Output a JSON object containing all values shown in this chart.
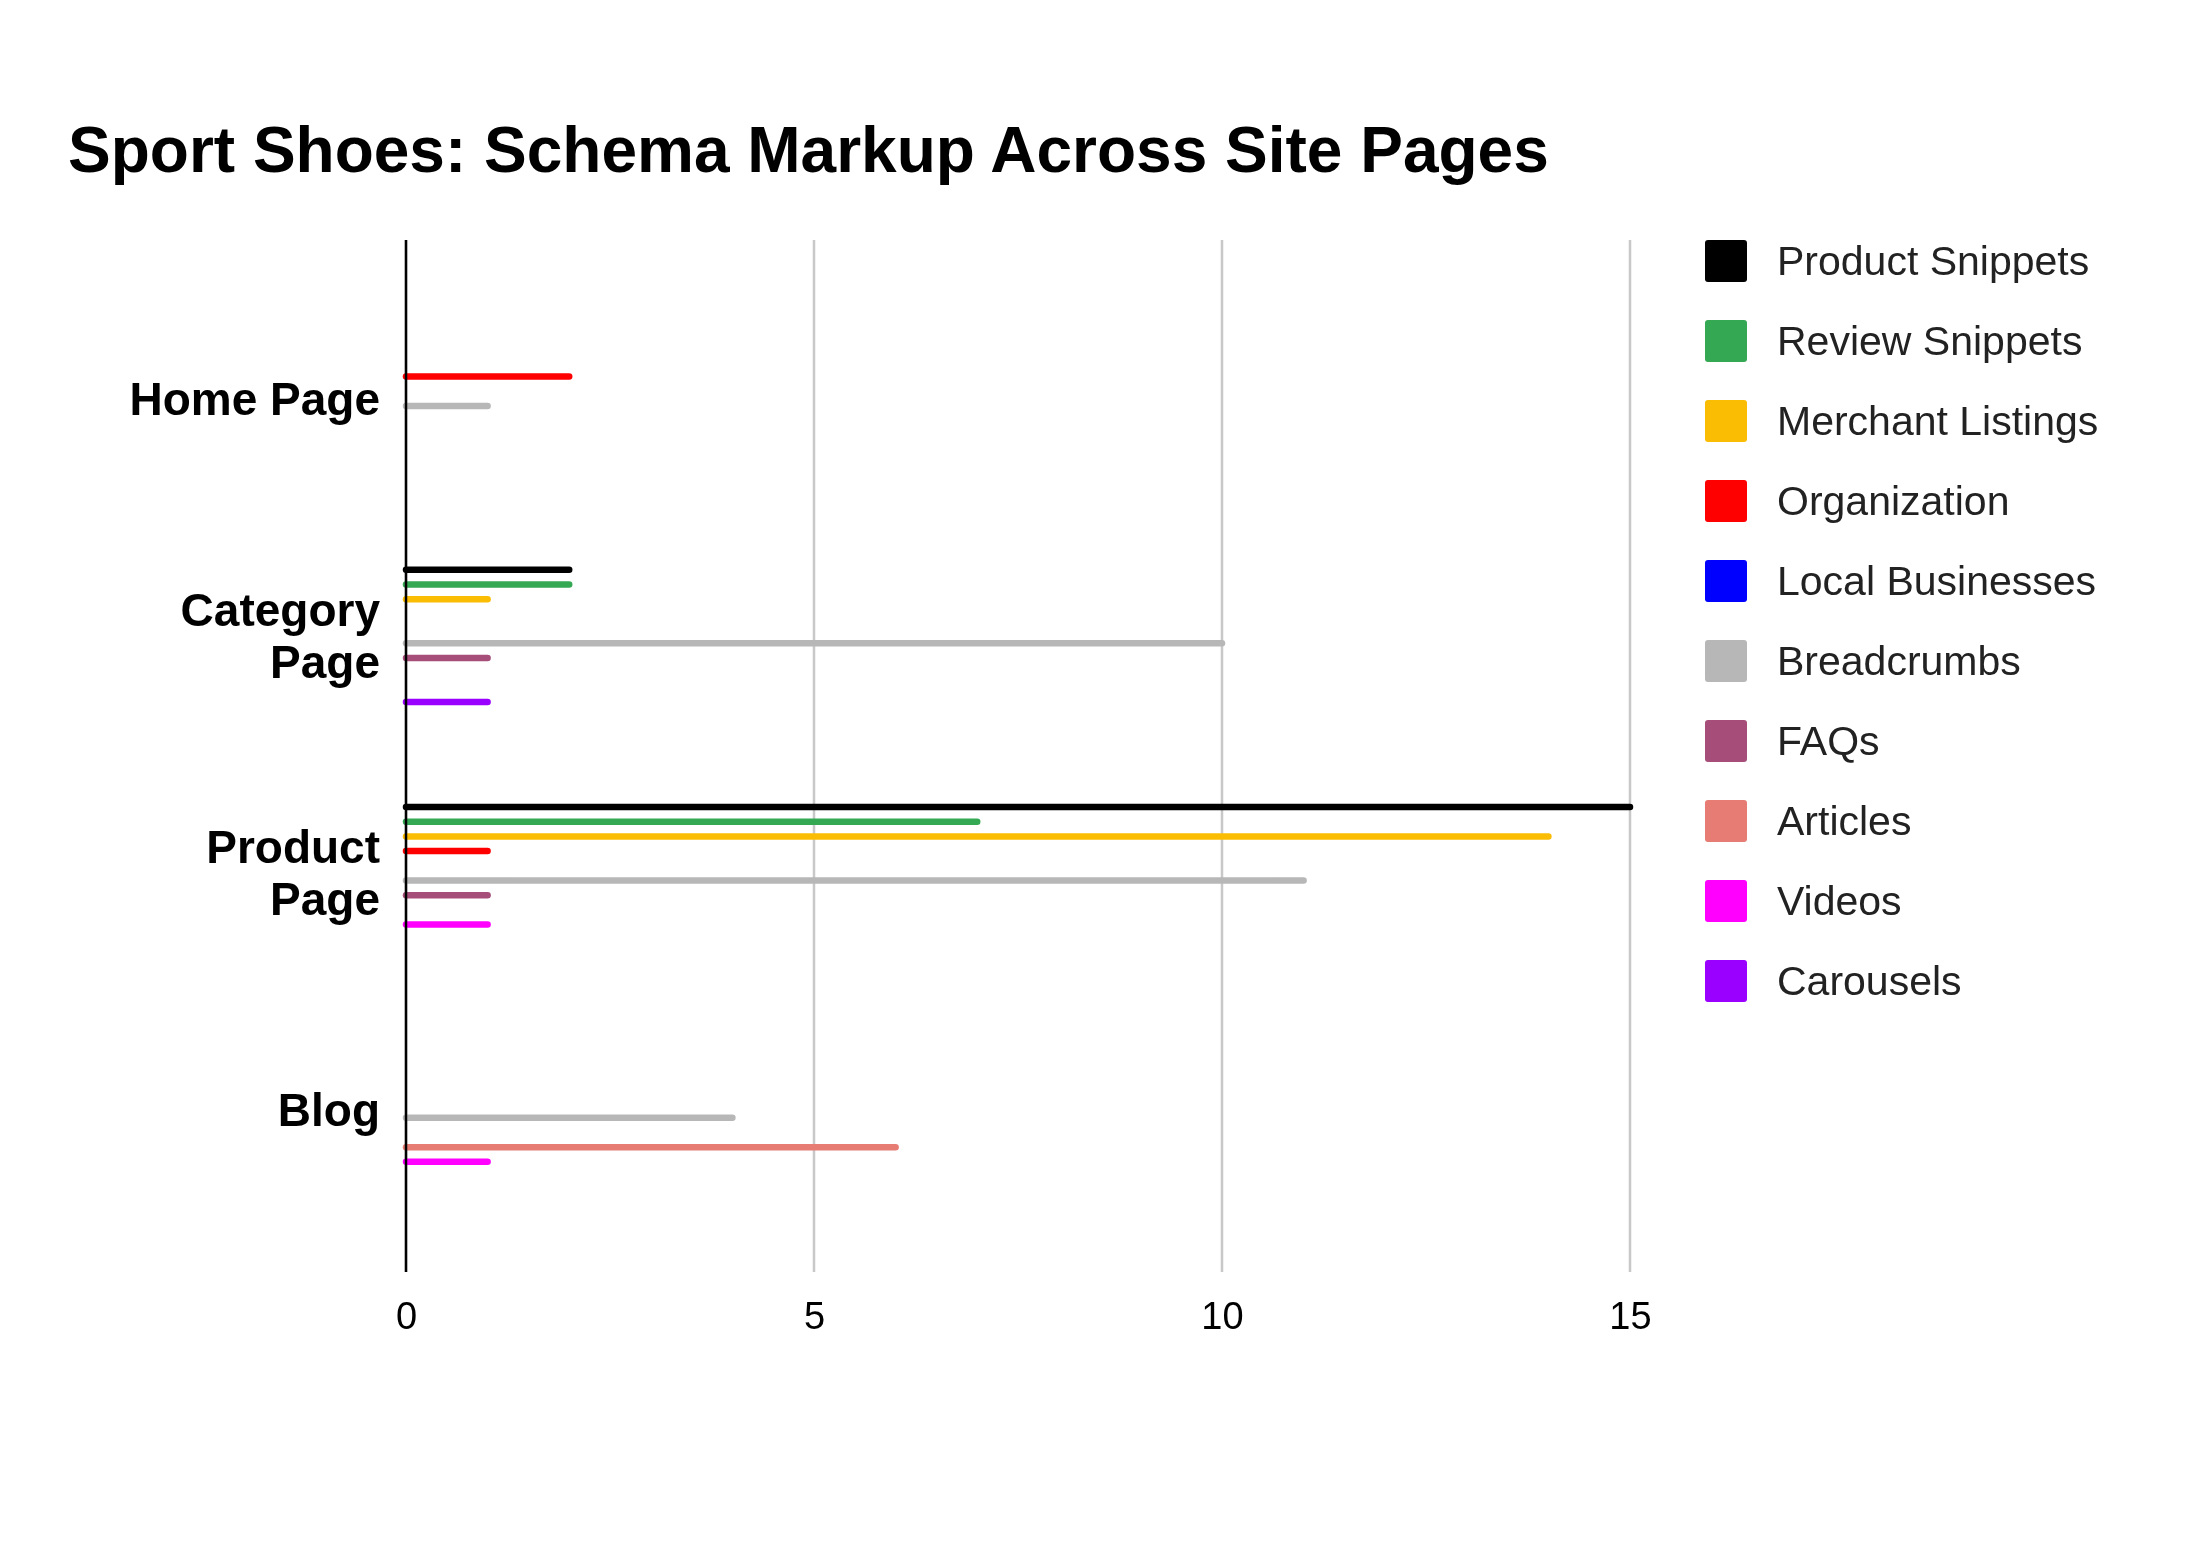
{
  "chart_data": {
    "type": "bar",
    "orientation": "horizontal",
    "title": "Sport Shoes: Schema Markup Across Site Pages",
    "categories": [
      "Home Page",
      "Category Page",
      "Product Page",
      "Blog"
    ],
    "series": [
      {
        "name": "Product Snippets",
        "color": "#000000",
        "values": [
          null,
          2,
          15,
          null
        ]
      },
      {
        "name": "Review Snippets",
        "color": "#34a853",
        "values": [
          null,
          2,
          7,
          null
        ]
      },
      {
        "name": "Merchant Listings",
        "color": "#fbbc04",
        "values": [
          null,
          1,
          14,
          null
        ]
      },
      {
        "name": "Organization",
        "color": "#ff0000",
        "values": [
          2,
          null,
          1,
          null
        ]
      },
      {
        "name": "Local Businesses",
        "color": "#0000ff",
        "values": [
          null,
          null,
          null,
          null
        ]
      },
      {
        "name": "Breadcrumbs",
        "color": "#b7b7b7",
        "values": [
          1,
          10,
          11,
          4
        ]
      },
      {
        "name": "FAQs",
        "color": "#a64d79",
        "values": [
          null,
          1,
          1,
          null
        ]
      },
      {
        "name": "Articles",
        "color": "#e67c73",
        "values": [
          null,
          null,
          null,
          6
        ]
      },
      {
        "name": "Videos",
        "color": "#ff00ff",
        "values": [
          null,
          null,
          1,
          1
        ]
      },
      {
        "name": "Carousels",
        "color": "#9900ff",
        "values": [
          null,
          1,
          null,
          null
        ]
      }
    ],
    "xlim": [
      0,
      15
    ],
    "xticks": [
      0,
      5,
      10,
      15
    ],
    "grid": "x",
    "legend": "right"
  }
}
